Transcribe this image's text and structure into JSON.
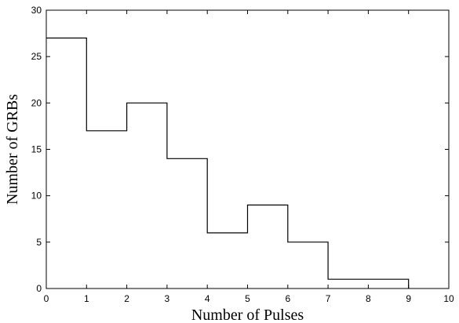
{
  "chart_data": {
    "type": "histogram",
    "xlabel": "Number of Pulses",
    "ylabel": "Number of GRBs",
    "xlim": [
      0,
      10
    ],
    "ylim": [
      0,
      30
    ],
    "x_ticks": [
      0,
      1,
      2,
      3,
      4,
      5,
      6,
      7,
      8,
      9,
      10
    ],
    "y_ticks": [
      0,
      5,
      10,
      15,
      20,
      25,
      30
    ],
    "bins": [
      {
        "start": 0,
        "end": 1,
        "count": 27
      },
      {
        "start": 1,
        "end": 2,
        "count": 17
      },
      {
        "start": 2,
        "end": 3,
        "count": 20
      },
      {
        "start": 3,
        "end": 4,
        "count": 14
      },
      {
        "start": 4,
        "end": 5,
        "count": 6
      },
      {
        "start": 5,
        "end": 6,
        "count": 9
      },
      {
        "start": 6,
        "end": 7,
        "count": 5
      },
      {
        "start": 7,
        "end": 8,
        "count": 1
      },
      {
        "start": 8,
        "end": 9,
        "count": 1
      }
    ],
    "grid": false,
    "style": {
      "line_color": "#000000",
      "axis_color": "#000000",
      "background": "#ffffff"
    }
  }
}
